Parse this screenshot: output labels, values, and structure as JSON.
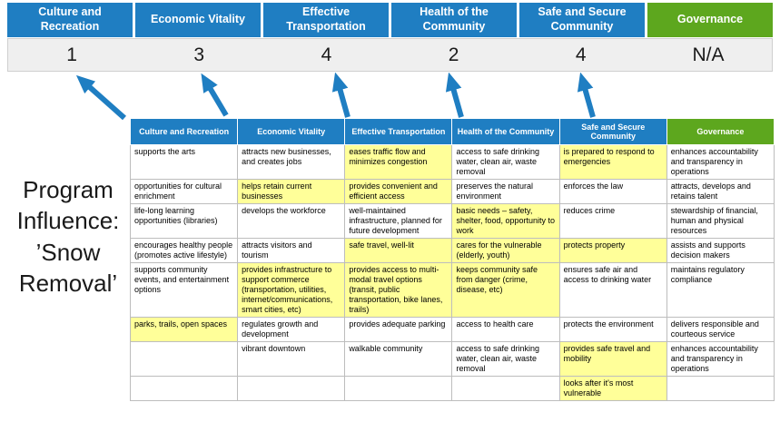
{
  "program_label": {
    "lines": [
      "Program",
      "Influence:",
      "’Snow",
      "Removal’"
    ]
  },
  "colors": {
    "blue": "#1f7ec2",
    "green": "#5da71e",
    "highlight": "#ffff99",
    "score_bg": "#efefef",
    "arrow": "#1f7ec2",
    "border": "#bdbdbd"
  },
  "categories": [
    {
      "label": "Culture and Recreation",
      "score": "1",
      "theme": "blue"
    },
    {
      "label": "Economic Vitality",
      "score": "3",
      "theme": "blue"
    },
    {
      "label": "Effective Transportation",
      "score": "4",
      "theme": "blue"
    },
    {
      "label": "Health of the Community",
      "score": "2",
      "theme": "blue"
    },
    {
      "label": "Safe and Secure Community",
      "score": "4",
      "theme": "blue"
    },
    {
      "label": "Governance",
      "score": "N/A",
      "theme": "green"
    }
  ],
  "table": {
    "rows": [
      {
        "cells": [
          {
            "text": "supports the arts",
            "highlight": false
          },
          {
            "text": "attracts new businesses, and creates jobs",
            "highlight": false
          },
          {
            "text": "eases traffic flow and minimizes congestion",
            "highlight": true
          },
          {
            "text": "access to safe drinking water, clean air, waste removal",
            "highlight": false
          },
          {
            "text": "is prepared to respond to emergencies",
            "highlight": true
          },
          {
            "text": "enhances accountability and transparency in operations",
            "highlight": false
          }
        ]
      },
      {
        "cells": [
          {
            "text": "opportunities for cultural enrichment",
            "highlight": false
          },
          {
            "text": "helps retain current businesses",
            "highlight": true
          },
          {
            "text": "provides convenient and efficient access",
            "highlight": true
          },
          {
            "text": "preserves the natural environment",
            "highlight": false
          },
          {
            "text": "enforces the law",
            "highlight": false
          },
          {
            "text": "attracts, develops and retains talent",
            "highlight": false
          }
        ]
      },
      {
        "cells": [
          {
            "text": "life-long learning opportunities (libraries)",
            "highlight": false
          },
          {
            "text": "develops the workforce",
            "highlight": false
          },
          {
            "text": "well-maintained infrastructure, planned for future development",
            "highlight": false
          },
          {
            "text": "basic needs – safety, shelter, food, opportunity to work",
            "highlight": true
          },
          {
            "text": "reduces crime",
            "highlight": false
          },
          {
            "text": "stewardship of financial, human and physical resources",
            "highlight": false
          }
        ]
      },
      {
        "cells": [
          {
            "text": "encourages healthy people (promotes active lifestyle)",
            "highlight": false
          },
          {
            "text": "attracts visitors and tourism",
            "highlight": false
          },
          {
            "text": "safe travel, well-lit",
            "highlight": true
          },
          {
            "text": "cares for the vulnerable (elderly, youth)",
            "highlight": true
          },
          {
            "text": "protects property",
            "highlight": true
          },
          {
            "text": "assists and supports decision makers",
            "highlight": false
          }
        ]
      },
      {
        "cells": [
          {
            "text": "supports community events, and entertainment options",
            "highlight": false
          },
          {
            "text": "provides infrastructure to support commerce (transportation, utilities, internet/communications, smart cities, etc)",
            "highlight": true
          },
          {
            "text": "provides access to multi-modal travel options (transit, public transportation, bike lanes, trails)",
            "highlight": true
          },
          {
            "text": "keeps community safe from danger (crime, disease, etc)",
            "highlight": true
          },
          {
            "text": "ensures safe air and access to drinking water",
            "highlight": false
          },
          {
            "text": "maintains regulatory compliance",
            "highlight": false
          }
        ]
      },
      {
        "cells": [
          {
            "text": "parks, trails, open spaces",
            "highlight": true
          },
          {
            "text": "regulates growth and development",
            "highlight": false
          },
          {
            "text": "provides adequate parking",
            "highlight": false
          },
          {
            "text": "access to health care",
            "highlight": false
          },
          {
            "text": "protects the environment",
            "highlight": false
          },
          {
            "text": "delivers responsible and courteous service",
            "highlight": false
          }
        ]
      },
      {
        "cells": [
          {
            "text": "",
            "highlight": false
          },
          {
            "text": "vibrant downtown",
            "highlight": false
          },
          {
            "text": "walkable community",
            "highlight": false
          },
          {
            "text": "access to safe drinking water, clean air, waste removal",
            "highlight": false
          },
          {
            "text": "provides safe travel and mobility",
            "highlight": true
          },
          {
            "text": "enhances accountability and transparency in operations",
            "highlight": false
          }
        ]
      },
      {
        "cells": [
          {
            "text": "",
            "highlight": false
          },
          {
            "text": "",
            "highlight": false
          },
          {
            "text": "",
            "highlight": false
          },
          {
            "text": "",
            "highlight": false
          },
          {
            "text": "looks after it's most vulnerable",
            "highlight": true
          },
          {
            "text": "",
            "highlight": false
          }
        ]
      }
    ]
  }
}
